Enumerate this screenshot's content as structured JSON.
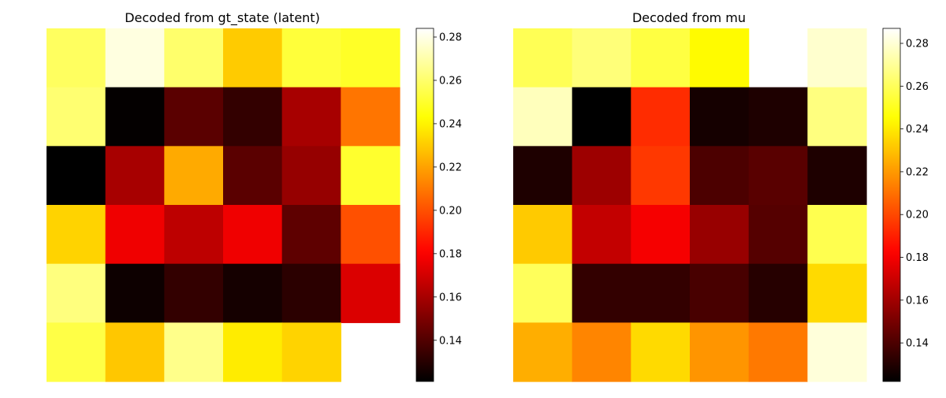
{
  "chart_data": [
    {
      "type": "heatmap",
      "title": "Decoded from gt_state (latent)",
      "colormap": "hot",
      "color_range": [
        0.121,
        0.284
      ],
      "colorbar_ticks": [
        "0.14",
        "0.16",
        "0.18",
        "0.20",
        "0.22",
        "0.24",
        "0.26",
        "0.28"
      ],
      "matrix": [
        [
          0.258,
          0.279,
          0.26,
          0.23,
          0.252,
          0.249
        ],
        [
          0.261,
          0.122,
          0.142,
          0.133,
          0.16,
          0.209
        ],
        [
          0.121,
          0.16,
          0.222,
          0.142,
          0.156,
          0.25
        ],
        [
          0.232,
          0.177,
          0.165,
          0.177,
          0.143,
          0.2
        ],
        [
          0.263,
          0.124,
          0.133,
          0.126,
          0.131,
          0.172
        ],
        [
          0.254,
          0.229,
          0.265,
          0.238,
          0.232,
          null
        ]
      ]
    },
    {
      "type": "heatmap",
      "title": "Decoded from mu",
      "colormap": "hot",
      "color_range": [
        0.122,
        0.287
      ],
      "colorbar_ticks": [
        "0.14",
        "0.16",
        "0.18",
        "0.20",
        "0.22",
        "0.24",
        "0.26",
        "0.28"
      ],
      "matrix": [
        [
          0.259,
          0.265,
          0.256,
          0.244,
          null,
          0.279
        ],
        [
          0.276,
          0.122,
          0.193,
          0.127,
          0.129,
          0.266
        ],
        [
          0.129,
          0.159,
          0.196,
          0.14,
          0.143,
          0.129
        ],
        [
          0.232,
          0.168,
          0.18,
          0.158,
          0.142,
          0.258
        ],
        [
          0.26,
          0.134,
          0.134,
          0.139,
          0.131,
          0.236
        ],
        [
          0.225,
          0.215,
          0.236,
          0.219,
          0.212,
          0.281
        ]
      ]
    }
  ]
}
